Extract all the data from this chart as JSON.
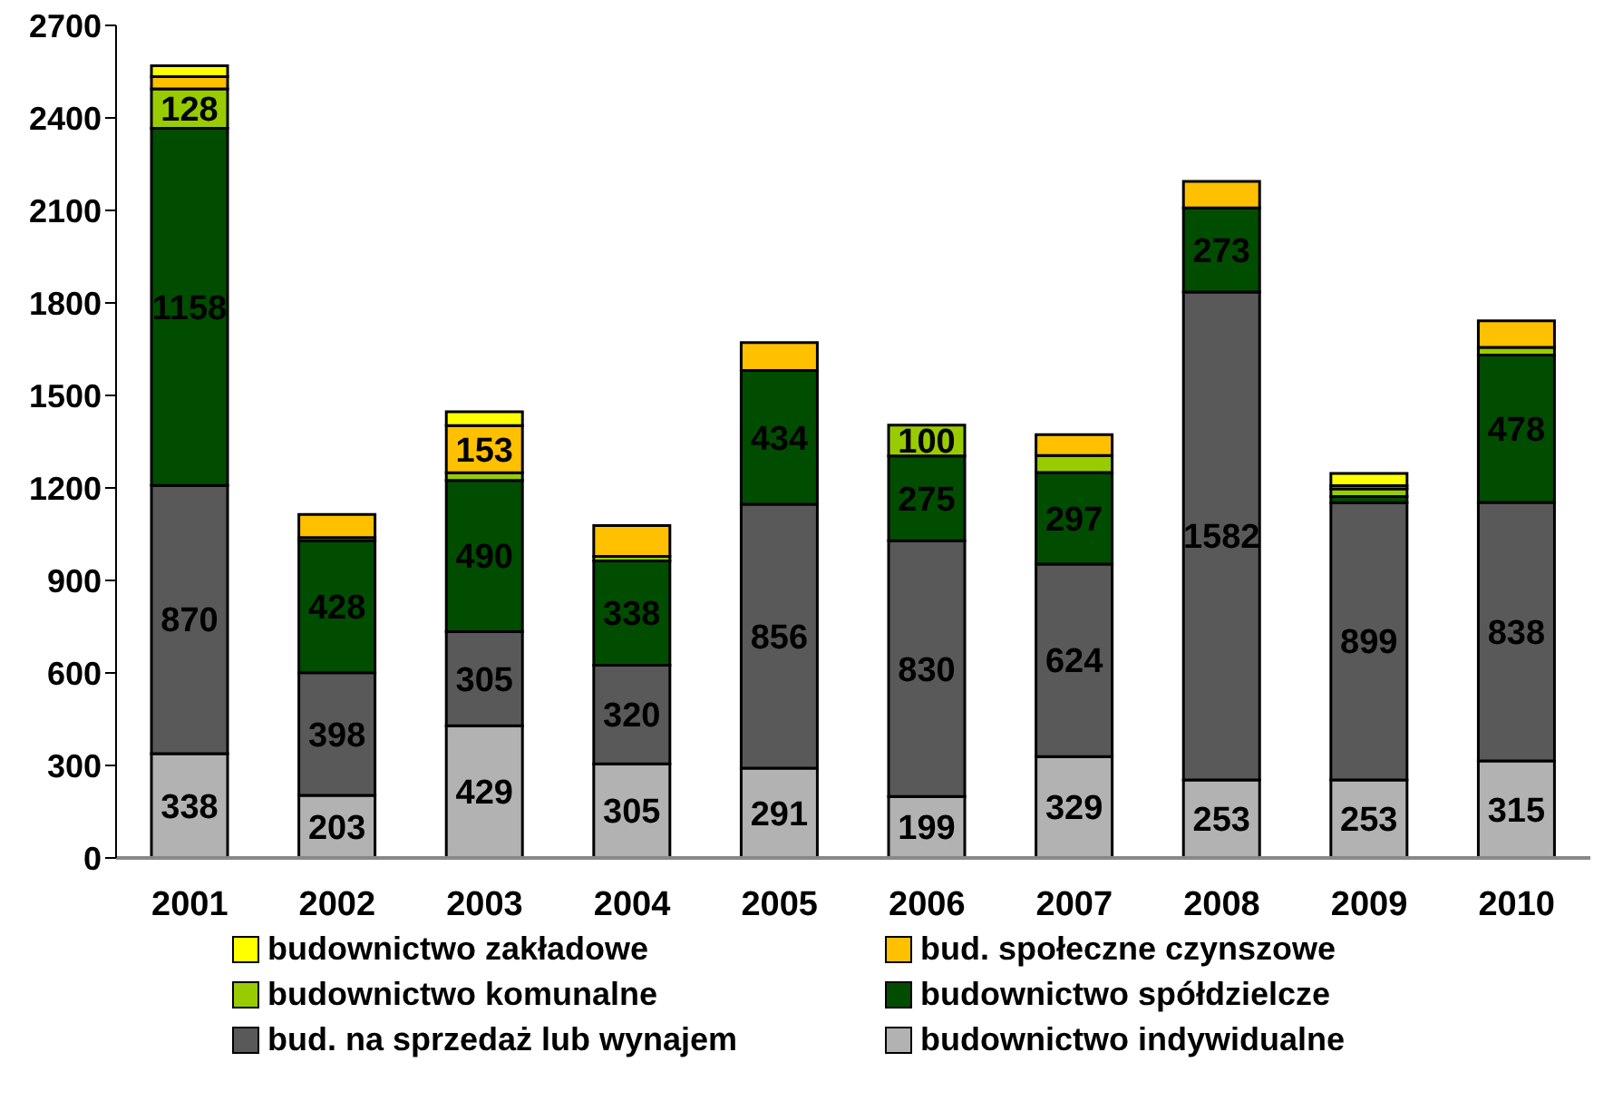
{
  "chart_data": {
    "type": "bar",
    "stacked": true,
    "categories": [
      "2001",
      "2002",
      "2003",
      "2004",
      "2005",
      "2006",
      "2007",
      "2008",
      "2009",
      "2010"
    ],
    "ylim": [
      0,
      2700
    ],
    "yticks": [
      0,
      300,
      600,
      900,
      1200,
      1500,
      1800,
      2100,
      2400,
      2700
    ],
    "grid": false,
    "legend": "bottom",
    "series": [
      {
        "name": "budownictwo indywidualne",
        "color": "#b2b2b2",
        "values": [
          338,
          203,
          429,
          305,
          291,
          199,
          329,
          253,
          253,
          315
        ],
        "value_labels": [
          "338",
          "203",
          "429",
          "305",
          "291",
          "199",
          "329",
          "253",
          "253",
          "315"
        ]
      },
      {
        "name": "bud. na sprzedaż lub wynajem",
        "color": "#595959",
        "values": [
          870,
          398,
          305,
          320,
          856,
          830,
          624,
          1582,
          899,
          838
        ],
        "value_labels": [
          "870",
          "398",
          "305",
          "320",
          "856",
          "830",
          "624",
          "1582",
          "899",
          "838"
        ]
      },
      {
        "name": "budownictwo spółdzielcze",
        "color": "#004d00",
        "values": [
          1158,
          428,
          490,
          338,
          434,
          275,
          297,
          273,
          20,
          478
        ],
        "value_labels": [
          "1158",
          "428",
          "490",
          "338",
          "434",
          "275",
          "297",
          "273",
          null,
          "478"
        ]
      },
      {
        "name": "budownictwo komunalne",
        "color": "#99cc00",
        "values": [
          128,
          10,
          25,
          15,
          null,
          100,
          55,
          null,
          25,
          25
        ],
        "value_labels": [
          "128",
          null,
          null,
          null,
          null,
          "100",
          null,
          null,
          null,
          null
        ]
      },
      {
        "name": "bud. społeczne czynszowe",
        "color": "#ffc000",
        "values": [
          40,
          75,
          153,
          100,
          90,
          null,
          68,
          86,
          10,
          86
        ],
        "value_labels": [
          null,
          null,
          "153",
          null,
          null,
          null,
          null,
          null,
          null,
          null
        ]
      },
      {
        "name": "budownictwo zakładowe",
        "color": "#ffff00",
        "values": [
          35,
          null,
          45,
          null,
          null,
          null,
          null,
          null,
          40,
          null
        ],
        "value_labels": [
          null,
          null,
          null,
          null,
          null,
          null,
          null,
          null,
          null,
          null
        ]
      }
    ]
  }
}
